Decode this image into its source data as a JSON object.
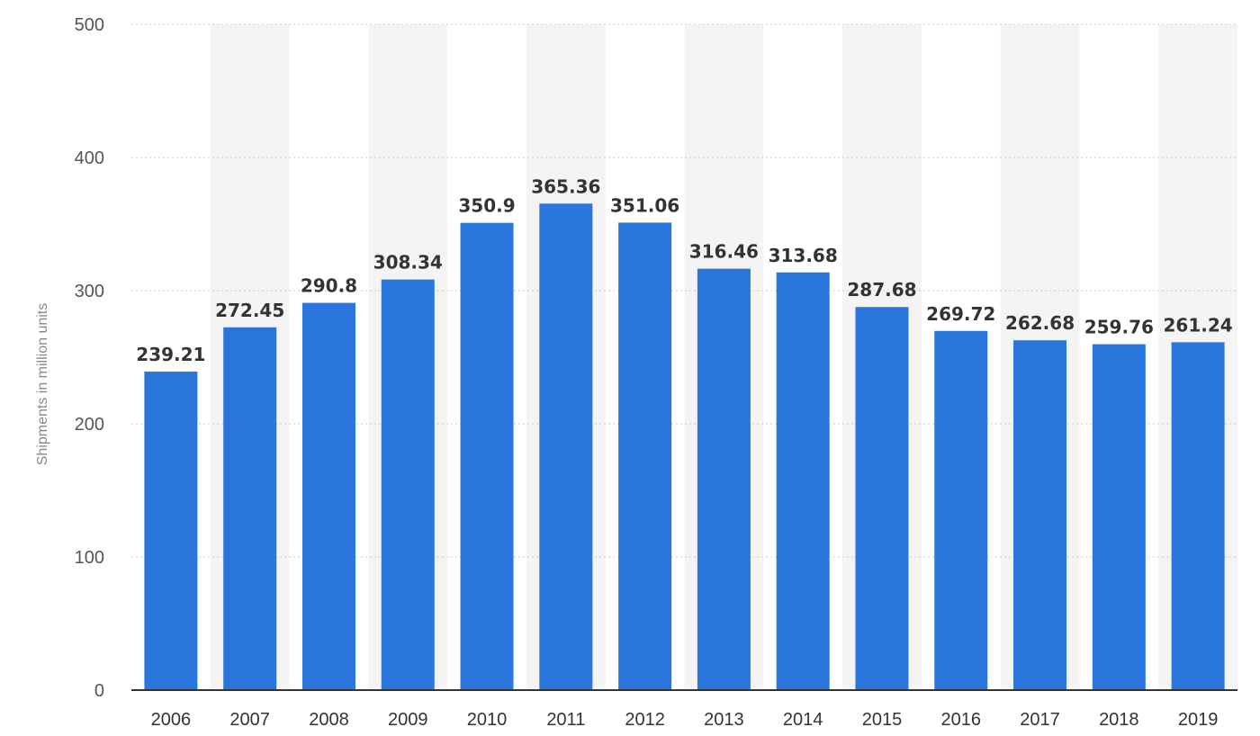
{
  "chart_data": {
    "type": "bar",
    "categories": [
      "2006",
      "2007",
      "2008",
      "2009",
      "2010",
      "2011",
      "2012",
      "2013",
      "2014",
      "2015",
      "2016",
      "2017",
      "2018",
      "2019"
    ],
    "values": [
      239.21,
      272.45,
      290.8,
      308.34,
      350.9,
      365.36,
      351.06,
      316.46,
      313.68,
      287.68,
      269.72,
      262.68,
      259.76,
      261.24
    ],
    "value_labels": [
      "239.21",
      "272.45",
      "290.8",
      "308.34",
      "350.9",
      "365.36",
      "351.06",
      "316.46",
      "313.68",
      "287.68",
      "269.72",
      "262.68",
      "259.76",
      "261.24"
    ],
    "title": "",
    "xlabel": "",
    "ylabel": "Shipments in million units",
    "ylim": [
      0,
      500
    ],
    "yticks": [
      0,
      100,
      200,
      300,
      400,
      500
    ],
    "ytick_labels": [
      "0",
      "100",
      "200",
      "300",
      "400",
      "500"
    ],
    "grid": true,
    "legend": "none",
    "colors": {
      "bar": "#2a76dd",
      "band": "#f4f4f4",
      "grid": "#cccccc",
      "axis": "#333333"
    }
  }
}
